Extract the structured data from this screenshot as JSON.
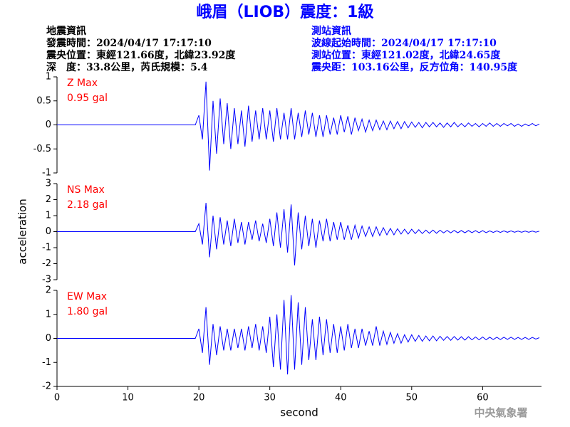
{
  "header": {
    "title": "峨眉（LIOB）震度：1級",
    "left": [
      "地震資訊",
      "發震時間：2024/04/17 17:17:10",
      "震央位置：東經121.66度，北緯23.92度",
      "深　度：33.8公里，芮氏規模：5.4"
    ],
    "right": [
      "測站資訊",
      "波線起始時間：2024/04/17 17:17:10",
      "測站位置：東經121.02度，北緯24.65度",
      "震央距：103.16公里，反方位角：140.95度"
    ],
    "watermark": "中央氣象署"
  },
  "chart_data": [
    {
      "type": "line",
      "label": "Z Max",
      "max_label": "0.95 gal",
      "color": "#0000ff",
      "xlim": [
        0,
        68.3
      ],
      "ylim": [
        -1,
        1
      ],
      "yticks": [
        -1,
        -0.5,
        0,
        0.5,
        1
      ],
      "x": [
        0,
        19.5,
        20,
        20.5,
        21,
        21.5,
        22,
        22.5,
        23,
        23.5,
        24,
        24.5,
        25,
        25.5,
        26,
        26.5,
        27,
        27.5,
        28,
        28.5,
        29,
        29.5,
        30,
        30.5,
        31,
        31.5,
        32,
        32.5,
        33,
        33.5,
        34,
        34.5,
        35,
        35.5,
        36,
        36.5,
        37,
        37.5,
        38,
        38.5,
        39,
        39.5,
        40,
        40.5,
        41,
        41.5,
        42,
        42.5,
        43,
        43.5,
        44,
        44.5,
        45,
        45.5,
        46,
        46.5,
        47,
        47.5,
        48,
        48.5,
        49,
        49.5,
        50,
        50.5,
        51,
        51.5,
        52,
        52.5,
        53,
        53.5,
        54,
        54.5,
        55,
        55.5,
        56,
        56.5,
        57,
        57.5,
        58,
        58.5,
        59,
        59.5,
        60,
        60.5,
        61,
        61.5,
        62,
        62.5,
        63,
        63.5,
        64,
        64.5,
        65,
        65.5,
        66,
        66.5,
        67,
        67.5,
        68
      ],
      "values": [
        0,
        0,
        0.2,
        -0.3,
        0.9,
        -0.95,
        0.5,
        -0.6,
        0.55,
        -0.4,
        0.45,
        -0.5,
        0.35,
        -0.4,
        0.3,
        -0.45,
        0.4,
        -0.35,
        0.3,
        -0.3,
        0.35,
        -0.3,
        0.3,
        -0.35,
        0.35,
        -0.3,
        0.25,
        -0.3,
        0.35,
        -0.3,
        0.25,
        -0.25,
        0.3,
        -0.2,
        0.25,
        -0.25,
        0.2,
        -0.25,
        0.2,
        -0.2,
        0.15,
        -0.2,
        0.2,
        -0.15,
        0.18,
        -0.2,
        0.15,
        -0.12,
        0.12,
        -0.15,
        0.1,
        -0.12,
        0.1,
        -0.1,
        0.08,
        -0.1,
        0.08,
        -0.08,
        0.07,
        -0.08,
        0.07,
        -0.06,
        0.06,
        -0.05,
        0.05,
        -0.06,
        0.05,
        -0.04,
        0.05,
        -0.04,
        0.04,
        -0.05,
        0.04,
        -0.04,
        0.05,
        -0.04,
        0.03,
        -0.04,
        0.04,
        -0.03,
        0.03,
        -0.04,
        0.03,
        -0.03,
        0.04,
        -0.03,
        0.03,
        -0.03,
        0.03,
        -0.02,
        0.03,
        -0.03,
        0.02,
        -0.03,
        0.02,
        -0.02,
        0.03,
        -0.02,
        0.02
      ]
    },
    {
      "type": "line",
      "label": "NS Max",
      "max_label": "2.18 gal",
      "color": "#0000ff",
      "ylabel": "acceleration",
      "xlim": [
        0,
        68.3
      ],
      "ylim": [
        -3,
        3
      ],
      "yticks": [
        -3,
        -2,
        -1,
        0,
        1,
        2,
        3
      ],
      "x": [
        0,
        19.5,
        20,
        20.5,
        21,
        21.5,
        22,
        22.5,
        23,
        23.5,
        24,
        24.5,
        25,
        25.5,
        26,
        26.5,
        27,
        27.5,
        28,
        28.5,
        29,
        29.5,
        30,
        30.5,
        31,
        31.5,
        32,
        32.5,
        33,
        33.5,
        34,
        34.5,
        35,
        35.5,
        36,
        36.5,
        37,
        37.5,
        38,
        38.5,
        39,
        39.5,
        40,
        40.5,
        41,
        41.5,
        42,
        42.5,
        43,
        43.5,
        44,
        44.5,
        45,
        45.5,
        46,
        46.5,
        47,
        47.5,
        48,
        48.5,
        49,
        49.5,
        50,
        50.5,
        51,
        51.5,
        52,
        52.5,
        53,
        53.5,
        54,
        54.5,
        55,
        55.5,
        56,
        56.5,
        57,
        57.5,
        58,
        58.5,
        59,
        59.5,
        60,
        60.5,
        61,
        61.5,
        62,
        62.5,
        63,
        63.5,
        64,
        64.5,
        65,
        65.5,
        66,
        66.5,
        67,
        67.5,
        68
      ],
      "values": [
        0,
        0,
        0.5,
        -0.8,
        1.8,
        -1.6,
        1.0,
        -1.1,
        0.9,
        -0.8,
        0.7,
        -0.9,
        0.8,
        -0.7,
        0.6,
        -0.8,
        0.6,
        -0.5,
        0.7,
        -0.6,
        0.5,
        -0.7,
        0.8,
        -0.9,
        1.2,
        -1.0,
        1.4,
        -1.3,
        1.7,
        -2.1,
        1.2,
        -1.1,
        1.0,
        -0.9,
        0.8,
        -1.0,
        0.7,
        -0.6,
        0.8,
        -0.6,
        0.6,
        -0.5,
        0.6,
        -0.5,
        0.4,
        -0.5,
        0.4,
        -0.4,
        0.35,
        -0.3,
        0.3,
        -0.3,
        0.3,
        -0.25,
        0.25,
        -0.2,
        0.2,
        -0.2,
        0.18,
        -0.15,
        0.15,
        -0.15,
        0.15,
        -0.12,
        0.12,
        -0.12,
        0.1,
        -0.1,
        0.1,
        -0.1,
        0.09,
        -0.08,
        0.08,
        -0.08,
        0.08,
        -0.07,
        0.07,
        -0.07,
        0.07,
        -0.06,
        0.06,
        -0.06,
        0.06,
        -0.06,
        0.05,
        -0.05,
        0.05,
        -0.05,
        0.05,
        -0.04,
        0.05,
        -0.04,
        0.04,
        -0.04,
        0.04,
        -0.04,
        0.04,
        -0.03,
        0.03
      ]
    },
    {
      "type": "line",
      "label": "EW Max",
      "max_label": "1.80 gal",
      "color": "#0000ff",
      "xlabel": "second",
      "xlim": [
        0,
        68.3
      ],
      "ylim": [
        -2,
        2
      ],
      "yticks": [
        -2,
        -1,
        0,
        1,
        2
      ],
      "xticks": [
        0,
        10,
        20,
        30,
        40,
        50,
        60
      ],
      "x": [
        0,
        19.5,
        20,
        20.5,
        21,
        21.5,
        22,
        22.5,
        23,
        23.5,
        24,
        24.5,
        25,
        25.5,
        26,
        26.5,
        27,
        27.5,
        28,
        28.5,
        29,
        29.5,
        30,
        30.5,
        31,
        31.5,
        32,
        32.5,
        33,
        33.5,
        34,
        34.5,
        35,
        35.5,
        36,
        36.5,
        37,
        37.5,
        38,
        38.5,
        39,
        39.5,
        40,
        40.5,
        41,
        41.5,
        42,
        42.5,
        43,
        43.5,
        44,
        44.5,
        45,
        45.5,
        46,
        46.5,
        47,
        47.5,
        48,
        48.5,
        49,
        49.5,
        50,
        50.5,
        51,
        51.5,
        52,
        52.5,
        53,
        53.5,
        54,
        54.5,
        55,
        55.5,
        56,
        56.5,
        57,
        57.5,
        58,
        58.5,
        59,
        59.5,
        60,
        60.5,
        61,
        61.5,
        62,
        62.5,
        63,
        63.5,
        64,
        64.5,
        65,
        65.5,
        66,
        66.5,
        67,
        67.5,
        68
      ],
      "values": [
        0,
        0,
        0.4,
        -0.6,
        1.3,
        -1.1,
        0.6,
        -0.7,
        0.5,
        -0.5,
        0.4,
        -0.5,
        0.4,
        -0.4,
        0.4,
        -0.5,
        0.5,
        -0.4,
        0.6,
        -0.5,
        0.5,
        -0.6,
        0.9,
        -1.2,
        1.0,
        -1.3,
        1.6,
        -1.5,
        1.8,
        -1.3,
        1.5,
        -1.1,
        1.3,
        -0.9,
        0.8,
        -0.9,
        0.9,
        -0.7,
        0.8,
        -0.6,
        0.6,
        -0.6,
        0.5,
        -0.5,
        0.6,
        -0.4,
        0.4,
        -0.4,
        0.4,
        -0.3,
        0.3,
        -0.3,
        0.5,
        -0.3,
        0.3,
        -0.25,
        0.25,
        -0.2,
        0.2,
        -0.2,
        0.15,
        -0.15,
        0.15,
        -0.12,
        0.12,
        -0.12,
        0.1,
        -0.1,
        0.1,
        -0.1,
        0.09,
        -0.08,
        0.08,
        -0.08,
        0.08,
        -0.07,
        0.07,
        -0.07,
        0.07,
        -0.06,
        0.06,
        -0.06,
        0.06,
        -0.06,
        0.05,
        -0.05,
        0.05,
        -0.05,
        0.05,
        -0.04,
        0.05,
        -0.04,
        0.04,
        -0.04,
        0.04,
        -0.04,
        0.04,
        -0.03,
        0.03
      ]
    }
  ]
}
